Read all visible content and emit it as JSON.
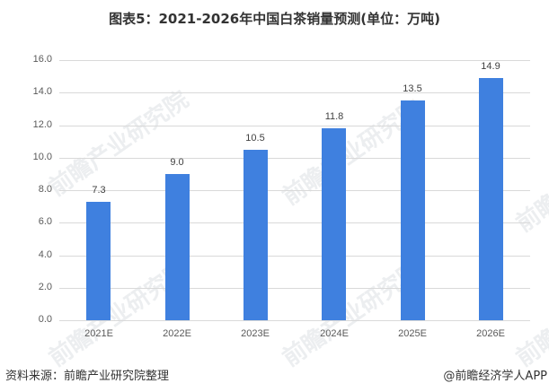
{
  "title": "图表5：2021-2026年中国白茶销量预测(单位：万吨)",
  "source": "资料来源：前瞻产业研究院整理",
  "credit": "@前瞻经济学人APP",
  "watermark": "前瞻产业研究院",
  "colors": {
    "bar": "#3f80df",
    "grid": "#d9d9d9"
  },
  "chart_data": {
    "type": "bar",
    "title": "图表5：2021-2026年中国白茶销量预测(单位：万吨)",
    "xlabel": "",
    "ylabel": "",
    "categories": [
      "2021E",
      "2022E",
      "2023E",
      "2024E",
      "2025E",
      "2026E"
    ],
    "values": [
      7.3,
      9.0,
      10.5,
      11.8,
      13.5,
      14.9
    ],
    "value_labels": [
      "7.3",
      "9.0",
      "10.5",
      "11.8",
      "13.5",
      "14.9"
    ],
    "ylim": [
      0,
      16
    ],
    "yticks": [
      "0.0",
      "2.0",
      "4.0",
      "6.0",
      "8.0",
      "10.0",
      "12.0",
      "14.0",
      "16.0"
    ],
    "grid": true,
    "legend": null
  }
}
